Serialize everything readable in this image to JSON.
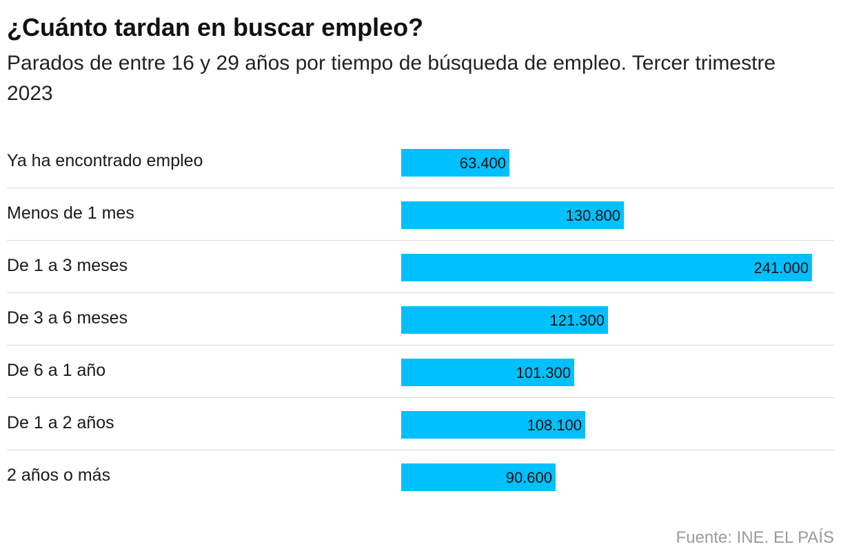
{
  "title": "¿Cuánto tardan en buscar empleo?",
  "subtitle": "Parados de entre 16 y 29 años por tiempo de búsqueda de empleo. Tercer trimestre 2023",
  "source": "Fuente: INE. EL PAÍS",
  "colors": {
    "bar": "#00c0ff",
    "divider": "#dcdcdc",
    "source_text": "#9a9a9a"
  },
  "chart_data": {
    "type": "bar",
    "orientation": "horizontal",
    "categories": [
      "Ya ha encontrado empleo",
      "Menos de 1 mes",
      "De 1 a 3 meses",
      "De 3 a 6 meses",
      "De 6 a 1 año",
      "De 1 a 2 años",
      "2 años o más"
    ],
    "values": [
      63400,
      130800,
      241000,
      121300,
      101300,
      108100,
      90600
    ],
    "value_labels": [
      "63.400",
      "130.800",
      "241.000",
      "121.300",
      "101.300",
      "108.100",
      "90.600"
    ],
    "title": "¿Cuánto tardan en buscar empleo?",
    "xlim": [
      0,
      241000
    ],
    "grid": false,
    "legend": "none"
  }
}
